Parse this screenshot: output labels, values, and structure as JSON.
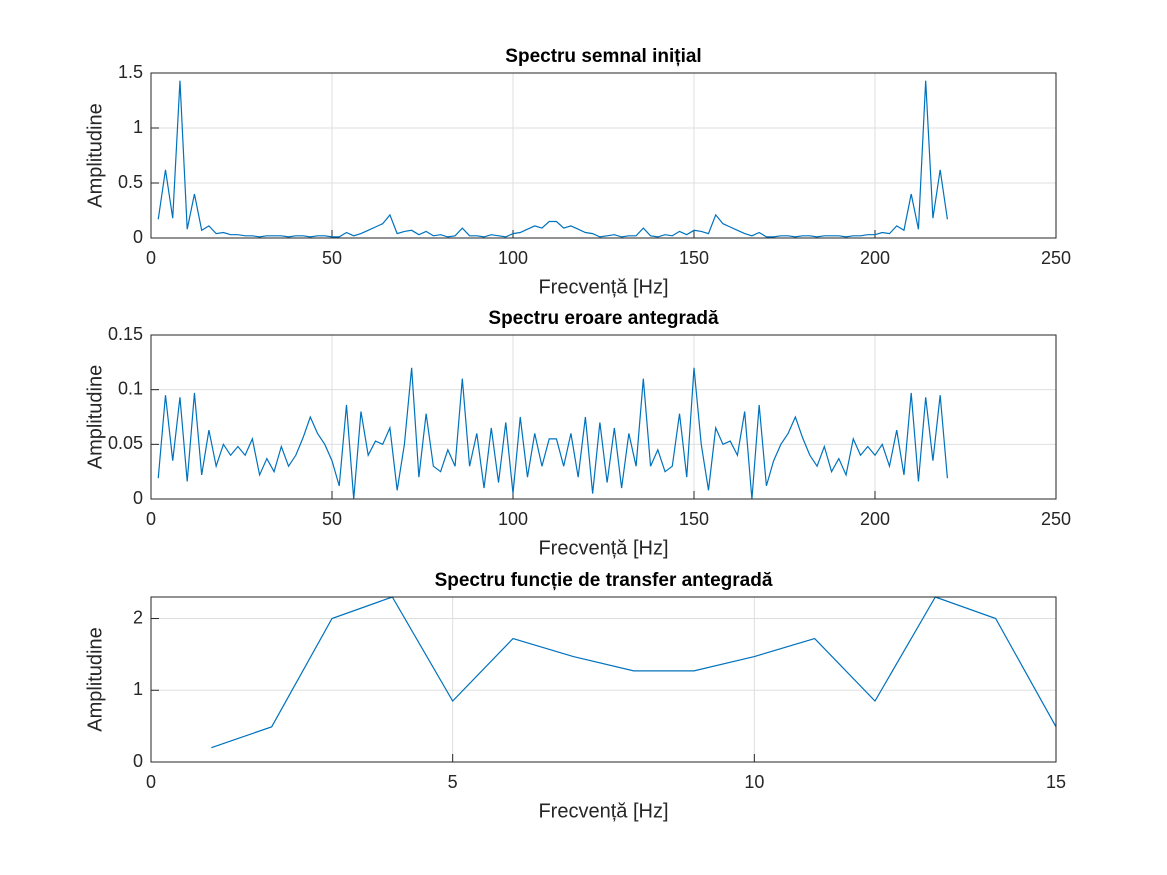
{
  "chart_data": [
    {
      "type": "line",
      "title": "Spectru semnal inițial",
      "xlabel": "Frecvență [Hz]",
      "ylabel": "Amplitudine",
      "x": [
        2,
        4,
        6,
        8,
        10,
        12,
        14,
        16,
        18,
        20,
        22,
        24,
        26,
        28,
        30,
        32,
        34,
        36,
        38,
        40,
        42,
        44,
        46,
        48,
        50,
        52,
        54,
        56,
        58,
        60,
        62,
        64,
        66,
        68,
        70,
        72,
        74,
        76,
        78,
        80,
        82,
        84,
        86,
        88,
        90,
        92,
        94,
        96,
        98,
        100,
        102,
        104,
        106,
        108,
        110,
        112,
        114,
        116,
        118,
        120,
        122,
        124,
        126,
        128,
        130,
        132,
        134,
        136,
        138,
        140,
        142,
        144,
        146,
        148,
        150,
        152,
        154,
        156,
        158,
        160,
        162,
        164,
        166,
        168,
        170,
        172,
        174,
        176,
        178,
        180,
        182,
        184,
        186,
        188,
        190,
        192,
        194,
        196,
        198,
        200,
        202,
        204,
        206,
        208,
        210,
        212,
        214,
        216,
        218,
        220
      ],
      "values": [
        0.17,
        0.62,
        0.18,
        1.43,
        0.08,
        0.4,
        0.07,
        0.11,
        0.04,
        0.05,
        0.03,
        0.03,
        0.02,
        0.02,
        0.01,
        0.02,
        0.02,
        0.02,
        0.01,
        0.02,
        0.02,
        0.01,
        0.02,
        0.02,
        0.01,
        0.01,
        0.05,
        0.02,
        0.04,
        0.07,
        0.1,
        0.13,
        0.21,
        0.04,
        0.06,
        0.07,
        0.03,
        0.06,
        0.02,
        0.03,
        0.01,
        0.02,
        0.09,
        0.02,
        0.02,
        0.01,
        0.03,
        0.02,
        0.01,
        0.04,
        0.05,
        0.08,
        0.11,
        0.09,
        0.15,
        0.15,
        0.09,
        0.11,
        0.08,
        0.05,
        0.04,
        0.01,
        0.02,
        0.03,
        0.01,
        0.02,
        0.02,
        0.09,
        0.02,
        0.01,
        0.03,
        0.02,
        0.06,
        0.03,
        0.07,
        0.06,
        0.04,
        0.21,
        0.13,
        0.1,
        0.07,
        0.04,
        0.02,
        0.05,
        0.01,
        0.01,
        0.02,
        0.02,
        0.01,
        0.02,
        0.02,
        0.01,
        0.02,
        0.02,
        0.02,
        0.01,
        0.02,
        0.02,
        0.03,
        0.03,
        0.05,
        0.04,
        0.11,
        0.07,
        0.4,
        0.08,
        1.43,
        0.18,
        0.62,
        0.17
      ],
      "color": "#0072bd",
      "xlim": [
        0,
        250
      ],
      "ylim": [
        0,
        1.5
      ],
      "xticks": [
        0,
        50,
        100,
        150,
        200,
        250
      ],
      "yticks": [
        0,
        0.5,
        1,
        1.5
      ],
      "grid": true
    },
    {
      "type": "line",
      "title": "Spectru eroare antegradă",
      "xlabel": "Frecvență [Hz]",
      "ylabel": "Amplitudine",
      "x": [
        2,
        4,
        6,
        8,
        10,
        12,
        14,
        16,
        18,
        20,
        22,
        24,
        26,
        28,
        30,
        32,
        34,
        36,
        38,
        40,
        42,
        44,
        46,
        48,
        50,
        52,
        54,
        56,
        58,
        60,
        62,
        64,
        66,
        68,
        70,
        72,
        74,
        76,
        78,
        80,
        82,
        84,
        86,
        88,
        90,
        92,
        94,
        96,
        98,
        100,
        102,
        104,
        106,
        108,
        110,
        112,
        114,
        116,
        118,
        120,
        122,
        124,
        126,
        128,
        130,
        132,
        134,
        136,
        138,
        140,
        142,
        144,
        146,
        148,
        150,
        152,
        154,
        156,
        158,
        160,
        162,
        164,
        166,
        168,
        170,
        172,
        174,
        176,
        178,
        180,
        182,
        184,
        186,
        188,
        190,
        192,
        194,
        196,
        198,
        200,
        202,
        204,
        206,
        208,
        210,
        212,
        214,
        216,
        218,
        220
      ],
      "values": [
        0.019,
        0.095,
        0.035,
        0.093,
        0.016,
        0.097,
        0.022,
        0.063,
        0.03,
        0.05,
        0.04,
        0.048,
        0.04,
        0.055,
        0.022,
        0.037,
        0.025,
        0.048,
        0.03,
        0.04,
        0.056,
        0.075,
        0.06,
        0.05,
        0.035,
        0.012,
        0.086,
        0,
        0.08,
        0.04,
        0.053,
        0.05,
        0.065,
        0.008,
        0.05,
        0.12,
        0.02,
        0.078,
        0.03,
        0.025,
        0.045,
        0.03,
        0.11,
        0.03,
        0.06,
        0.01,
        0.065,
        0.015,
        0.07,
        0.005,
        0.075,
        0.02,
        0.06,
        0.03,
        0.055,
        0.055,
        0.03,
        0.06,
        0.02,
        0.075,
        0.005,
        0.07,
        0.015,
        0.065,
        0.01,
        0.06,
        0.03,
        0.11,
        0.03,
        0.045,
        0.025,
        0.03,
        0.078,
        0.02,
        0.12,
        0.05,
        0.008,
        0.065,
        0.05,
        0.053,
        0.04,
        0.08,
        0,
        0.086,
        0.012,
        0.035,
        0.05,
        0.06,
        0.075,
        0.056,
        0.04,
        0.03,
        0.048,
        0.025,
        0.037,
        0.022,
        0.055,
        0.04,
        0.048,
        0.04,
        0.05,
        0.03,
        0.063,
        0.022,
        0.097,
        0.016,
        0.093,
        0.035,
        0.095,
        0.019
      ],
      "color": "#0072bd",
      "xlim": [
        0,
        250
      ],
      "ylim": [
        0,
        0.15
      ],
      "xticks": [
        0,
        50,
        100,
        150,
        200,
        250
      ],
      "yticks": [
        0,
        0.05,
        0.1,
        0.15
      ],
      "grid": true
    },
    {
      "type": "line",
      "title": "Spectru funcție de transfer antegradă",
      "xlabel": "Frecvență [Hz]",
      "ylabel": "Amplitudine",
      "x": [
        1,
        2,
        3,
        4,
        5,
        6,
        7,
        8,
        9,
        10,
        11,
        12,
        13,
        14,
        15
      ],
      "values": [
        0.2,
        0.49,
        2.0,
        2.3,
        0.85,
        1.72,
        1.47,
        1.27,
        1.27,
        1.47,
        1.72,
        0.85,
        2.3,
        2.0,
        0.49
      ],
      "color": "#0072bd",
      "xlim": [
        0,
        15
      ],
      "ylim": [
        0,
        2.3
      ],
      "xticks": [
        0,
        5,
        10,
        15
      ],
      "yticks": [
        0,
        1,
        2
      ],
      "grid": true
    }
  ]
}
